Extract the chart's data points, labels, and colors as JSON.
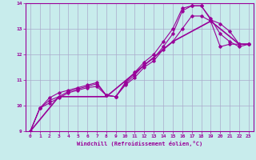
{
  "xlabel": "Windchill (Refroidissement éolien,°C)",
  "ylabel": "",
  "xlim": [
    -0.5,
    23.5
  ],
  "ylim": [
    9,
    14
  ],
  "yticks": [
    9,
    10,
    11,
    12,
    13,
    14
  ],
  "xticks": [
    0,
    1,
    2,
    3,
    4,
    5,
    6,
    7,
    8,
    9,
    10,
    11,
    12,
    13,
    14,
    15,
    16,
    17,
    18,
    19,
    20,
    21,
    22,
    23
  ],
  "bg_color": "#c8ecec",
  "line_color": "#990099",
  "grid_color": "#aaaacc",
  "lines": [
    {
      "x": [
        0,
        1,
        2,
        3,
        4,
        5,
        6,
        7,
        8,
        9,
        10,
        11,
        12,
        13,
        14,
        15,
        16,
        17,
        18,
        19,
        20,
        21,
        22,
        23
      ],
      "y": [
        9.0,
        9.9,
        10.1,
        10.3,
        10.5,
        10.6,
        10.7,
        10.75,
        10.4,
        10.35,
        10.8,
        11.1,
        11.5,
        11.75,
        12.2,
        12.5,
        13.0,
        13.5,
        13.5,
        13.3,
        12.3,
        12.4,
        12.4,
        12.4
      ],
      "marker": "D",
      "markersize": 1.8,
      "linewidth": 0.8
    },
    {
      "x": [
        0,
        1,
        2,
        3,
        4,
        5,
        6,
        7,
        8,
        9,
        10,
        11,
        12,
        13,
        14,
        15,
        16,
        17,
        18,
        19,
        20,
        21,
        22,
        23
      ],
      "y": [
        9.0,
        9.9,
        10.3,
        10.5,
        10.6,
        10.7,
        10.8,
        10.9,
        10.4,
        10.35,
        10.9,
        11.3,
        11.7,
        12.0,
        12.5,
        13.0,
        13.8,
        13.9,
        13.9,
        13.4,
        12.8,
        12.5,
        12.3,
        12.4
      ],
      "marker": "D",
      "markersize": 1.8,
      "linewidth": 0.8
    },
    {
      "x": [
        0,
        1,
        2,
        3,
        4,
        5,
        6,
        7,
        8,
        9,
        10,
        11,
        12,
        13,
        14,
        15,
        16,
        17,
        18,
        19,
        20,
        21,
        22,
        23
      ],
      "y": [
        9.0,
        9.9,
        10.2,
        10.35,
        10.55,
        10.65,
        10.75,
        10.85,
        10.4,
        10.35,
        10.85,
        11.2,
        11.6,
        11.85,
        12.3,
        12.8,
        13.7,
        13.9,
        13.9,
        13.35,
        13.2,
        12.9,
        12.4,
        12.4
      ],
      "marker": "D",
      "markersize": 1.8,
      "linewidth": 0.8
    },
    {
      "x": [
        0,
        3,
        8,
        15,
        19,
        22,
        23
      ],
      "y": [
        9.0,
        10.35,
        10.35,
        12.5,
        13.3,
        12.4,
        12.4
      ],
      "marker": null,
      "markersize": 0,
      "linewidth": 1.2
    }
  ]
}
